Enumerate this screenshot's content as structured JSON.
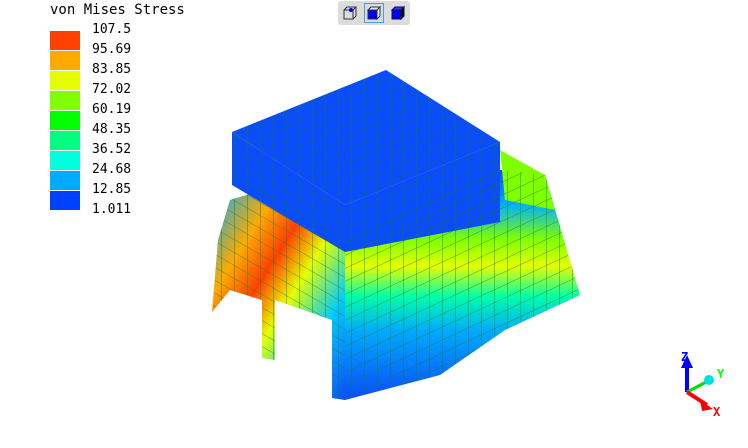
{
  "legend": {
    "title": "von Mises Stress",
    "labels": [
      "107.5",
      "95.69",
      "83.85",
      "72.02",
      "60.19",
      "48.35",
      "36.52",
      "24.68",
      "12.85",
      "1.011"
    ],
    "colors": [
      "#ff4000",
      "#ffaa00",
      "#e6ff00",
      "#7fff00",
      "#00ff00",
      "#00ff80",
      "#00ffdd",
      "#00aaff",
      "#0040ff"
    ]
  },
  "toolbar": {
    "buttons": [
      {
        "icon": "cube-point-icon"
      },
      {
        "icon": "cube-solid-icon",
        "selected": true
      },
      {
        "icon": "cube-shaded-icon"
      }
    ]
  },
  "axes": {
    "x": "X",
    "y": "Y",
    "z": "Z",
    "colors": {
      "x": "#ff0000",
      "y": "#00ff00",
      "z": "#0000ff"
    }
  }
}
